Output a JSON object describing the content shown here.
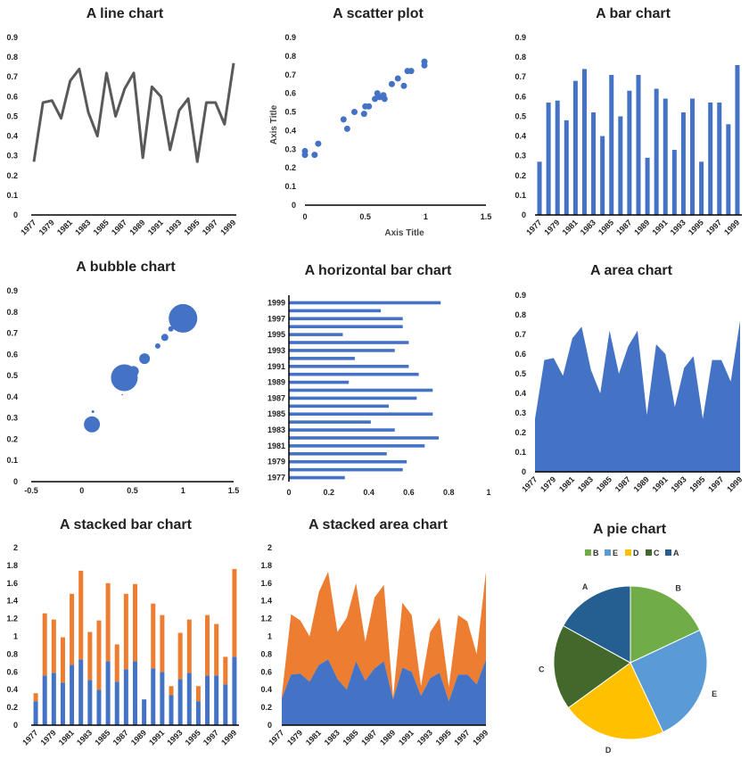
{
  "colors": {
    "blue": "#4472C4",
    "orange": "#ED7D31",
    "gray": "#595959",
    "pie_B": "#70AD47",
    "pie_E": "#5B9BD5",
    "pie_D": "#FFC000",
    "pie_C": "#43682B",
    "pie_A": "#255E91"
  },
  "chart_data": [
    {
      "id": "line",
      "type": "line",
      "title": "A line chart",
      "x": [
        "1977",
        "1978",
        "1979",
        "1980",
        "1981",
        "1982",
        "1983",
        "1984",
        "1985",
        "1986",
        "1987",
        "1988",
        "1989",
        "1990",
        "1991",
        "1992",
        "1993",
        "1994",
        "1995",
        "1996",
        "1997",
        "1998",
        "1999"
      ],
      "xticks": [
        "1977",
        "1979",
        "1981",
        "1983",
        "1985",
        "1987",
        "1989",
        "1991",
        "1993",
        "1995",
        "1997",
        "1999"
      ],
      "values": [
        0.27,
        0.57,
        0.58,
        0.49,
        0.68,
        0.74,
        0.52,
        0.4,
        0.72,
        0.5,
        0.64,
        0.72,
        0.29,
        0.65,
        0.6,
        0.33,
        0.53,
        0.59,
        0.27,
        0.57,
        0.57,
        0.46,
        0.77
      ],
      "ylim": [
        0,
        0.9
      ],
      "yticks": [
        "0",
        "0.1",
        "0.2",
        "0.3",
        "0.4",
        "0.5",
        "0.6",
        "0.7",
        "0.8",
        "0.9"
      ]
    },
    {
      "id": "scatter",
      "type": "scatter",
      "title": "A scatter plot",
      "xlabel": "Axis Title",
      "ylabel": "Axis Title",
      "xlim": [
        0,
        1.5
      ],
      "ylim": [
        0,
        0.9
      ],
      "xticks": [
        "0",
        "0.5",
        "1",
        "1.5"
      ],
      "yticks": [
        "0",
        "0.1",
        "0.2",
        "0.3",
        "0.4",
        "0.5",
        "0.6",
        "0.7",
        "0.8",
        "0.9"
      ],
      "points": [
        {
          "x": 0.0,
          "y": 0.27
        },
        {
          "x": 0.0,
          "y": 0.29
        },
        {
          "x": 0.08,
          "y": 0.27
        },
        {
          "x": 0.11,
          "y": 0.33
        },
        {
          "x": 0.32,
          "y": 0.46
        },
        {
          "x": 0.35,
          "y": 0.41
        },
        {
          "x": 0.41,
          "y": 0.5
        },
        {
          "x": 0.49,
          "y": 0.49
        },
        {
          "x": 0.5,
          "y": 0.53
        },
        {
          "x": 0.53,
          "y": 0.53
        },
        {
          "x": 0.58,
          "y": 0.57
        },
        {
          "x": 0.6,
          "y": 0.6
        },
        {
          "x": 0.62,
          "y": 0.58
        },
        {
          "x": 0.65,
          "y": 0.59
        },
        {
          "x": 0.66,
          "y": 0.57
        },
        {
          "x": 0.72,
          "y": 0.65
        },
        {
          "x": 0.77,
          "y": 0.68
        },
        {
          "x": 0.82,
          "y": 0.64
        },
        {
          "x": 0.85,
          "y": 0.72
        },
        {
          "x": 0.88,
          "y": 0.72
        },
        {
          "x": 0.99,
          "y": 0.75
        },
        {
          "x": 0.99,
          "y": 0.77
        }
      ]
    },
    {
      "id": "bar",
      "type": "bar",
      "title": "A bar chart",
      "x": [
        "1977",
        "1978",
        "1979",
        "1980",
        "1981",
        "1982",
        "1983",
        "1984",
        "1985",
        "1986",
        "1987",
        "1988",
        "1989",
        "1990",
        "1991",
        "1992",
        "1993",
        "1994",
        "1995",
        "1996",
        "1997",
        "1998",
        "1999"
      ],
      "xticks": [
        "1977",
        "1979",
        "1981",
        "1983",
        "1985",
        "1987",
        "1989",
        "1991",
        "1993",
        "1995",
        "1997",
        "1999"
      ],
      "values": [
        0.27,
        0.57,
        0.58,
        0.48,
        0.68,
        0.74,
        0.52,
        0.4,
        0.71,
        0.5,
        0.63,
        0.71,
        0.29,
        0.64,
        0.59,
        0.33,
        0.52,
        0.59,
        0.27,
        0.57,
        0.57,
        0.46,
        0.76
      ],
      "ylim": [
        0,
        0.9
      ],
      "yticks": [
        "0",
        "0.1",
        "0.2",
        "0.3",
        "0.4",
        "0.5",
        "0.6",
        "0.7",
        "0.8",
        "0.9"
      ]
    },
    {
      "id": "bubble",
      "type": "scatter",
      "title": "A bubble chart",
      "xlim": [
        -0.5,
        1.5
      ],
      "ylim": [
        0,
        0.9
      ],
      "xticks": [
        "-0.5",
        "0",
        "0.5",
        "1",
        "1.5"
      ],
      "yticks": [
        "0",
        "0.1",
        "0.2",
        "0.3",
        "0.4",
        "0.5",
        "0.6",
        "0.7",
        "0.8",
        "0.9"
      ],
      "points": [
        {
          "x": 0.1,
          "y": 0.27,
          "size": 9
        },
        {
          "x": 0.11,
          "y": 0.33,
          "size": 1.5
        },
        {
          "x": 0.42,
          "y": 0.49,
          "size": 15
        },
        {
          "x": 0.51,
          "y": 0.52,
          "size": 6
        },
        {
          "x": 0.4,
          "y": 0.41,
          "size": 0.8
        },
        {
          "x": 0.62,
          "y": 0.58,
          "size": 6
        },
        {
          "x": 0.65,
          "y": 0.57,
          "size": 1
        },
        {
          "x": 0.75,
          "y": 0.64,
          "size": 3
        },
        {
          "x": 0.82,
          "y": 0.68,
          "size": 4
        },
        {
          "x": 0.88,
          "y": 0.72,
          "size": 3
        },
        {
          "x": 1.0,
          "y": 0.77,
          "size": 16
        }
      ]
    },
    {
      "id": "hbar",
      "type": "bar",
      "orientation": "horizontal",
      "title": "A horizontal bar chart",
      "x": [
        "1977",
        "1978",
        "1979",
        "1980",
        "1981",
        "1982",
        "1983",
        "1984",
        "1985",
        "1986",
        "1987",
        "1988",
        "1989",
        "1990",
        "1991",
        "1992",
        "1993",
        "1994",
        "1995",
        "1996",
        "1997",
        "1998",
        "1999"
      ],
      "yticks": [
        "1977",
        "1979",
        "1981",
        "1983",
        "1985",
        "1987",
        "1989",
        "1991",
        "1993",
        "1995",
        "1997",
        "1999"
      ],
      "values": [
        0.28,
        0.57,
        0.59,
        0.49,
        0.68,
        0.75,
        0.53,
        0.41,
        0.72,
        0.5,
        0.64,
        0.72,
        0.3,
        0.65,
        0.6,
        0.33,
        0.53,
        0.6,
        0.27,
        0.57,
        0.57,
        0.46,
        0.76
      ],
      "xlim": [
        0,
        1
      ],
      "xticks": [
        "0",
        "0.2",
        "0.4",
        "0.6",
        "0.8",
        "1"
      ]
    },
    {
      "id": "area",
      "type": "area",
      "title": "A area chart",
      "x": [
        "1977",
        "1978",
        "1979",
        "1980",
        "1981",
        "1982",
        "1983",
        "1984",
        "1985",
        "1986",
        "1987",
        "1988",
        "1989",
        "1990",
        "1991",
        "1992",
        "1993",
        "1994",
        "1995",
        "1996",
        "1997",
        "1998",
        "1999"
      ],
      "xticks": [
        "1977",
        "1979",
        "1981",
        "1983",
        "1985",
        "1987",
        "1989",
        "1991",
        "1993",
        "1995",
        "1997",
        "1999"
      ],
      "values": [
        0.27,
        0.57,
        0.58,
        0.49,
        0.68,
        0.74,
        0.52,
        0.4,
        0.72,
        0.5,
        0.64,
        0.72,
        0.29,
        0.65,
        0.6,
        0.33,
        0.53,
        0.59,
        0.27,
        0.57,
        0.57,
        0.46,
        0.77
      ],
      "ylim": [
        0,
        0.9
      ],
      "yticks": [
        "0",
        "0.1",
        "0.2",
        "0.3",
        "0.4",
        "0.5",
        "0.6",
        "0.7",
        "0.8",
        "0.9"
      ]
    },
    {
      "id": "stackbar",
      "type": "bar",
      "stacked": true,
      "title": "A stacked bar chart",
      "x": [
        "1977",
        "1978",
        "1979",
        "1980",
        "1981",
        "1982",
        "1983",
        "1984",
        "1985",
        "1986",
        "1987",
        "1988",
        "1989",
        "1990",
        "1991",
        "1992",
        "1993",
        "1994",
        "1995",
        "1996",
        "1997",
        "1998",
        "1999"
      ],
      "xticks": [
        "1977",
        "1979",
        "1981",
        "1983",
        "1985",
        "1987",
        "1989",
        "1991",
        "1993",
        "1995",
        "1997",
        "1999"
      ],
      "series": [
        {
          "values": [
            0.27,
            0.56,
            0.59,
            0.48,
            0.68,
            0.74,
            0.51,
            0.4,
            0.72,
            0.49,
            0.63,
            0.72,
            0.29,
            0.64,
            0.6,
            0.34,
            0.52,
            0.59,
            0.27,
            0.56,
            0.56,
            0.46,
            0.77
          ]
        },
        {
          "values": [
            0.09,
            0.7,
            0.6,
            0.51,
            0.8,
            1.0,
            0.54,
            0.78,
            0.88,
            0.42,
            0.85,
            0.87,
            0.0,
            0.73,
            0.64,
            0.1,
            0.52,
            0.6,
            0.17,
            0.68,
            0.58,
            0.31,
            0.99
          ]
        }
      ],
      "ylim": [
        0,
        2
      ],
      "yticks": [
        "0",
        "0.2",
        "0.4",
        "0.6",
        "0.8",
        "1",
        "1.2",
        "1.4",
        "1.6",
        "1.8",
        "2"
      ]
    },
    {
      "id": "stackarea",
      "type": "area",
      "stacked": true,
      "title": "A stacked area chart",
      "x": [
        "1977",
        "1978",
        "1979",
        "1980",
        "1981",
        "1982",
        "1983",
        "1984",
        "1985",
        "1986",
        "1987",
        "1988",
        "1989",
        "1990",
        "1991",
        "1992",
        "1993",
        "1994",
        "1995",
        "1996",
        "1997",
        "1998",
        "1999"
      ],
      "xticks": [
        "1977",
        "1979",
        "1981",
        "1983",
        "1985",
        "1987",
        "1989",
        "1991",
        "1993",
        "1995",
        "1997",
        "1999"
      ],
      "series": [
        {
          "values": [
            0.3,
            0.57,
            0.58,
            0.49,
            0.68,
            0.74,
            0.52,
            0.4,
            0.72,
            0.5,
            0.64,
            0.72,
            0.29,
            0.65,
            0.6,
            0.33,
            0.53,
            0.59,
            0.27,
            0.57,
            0.57,
            0.46,
            0.74
          ]
        },
        {
          "values": [
            0.03,
            0.68,
            0.6,
            0.51,
            0.82,
            0.99,
            0.53,
            0.81,
            0.88,
            0.44,
            0.8,
            0.86,
            0.02,
            0.73,
            0.64,
            0.11,
            0.52,
            0.62,
            0.16,
            0.67,
            0.6,
            0.34,
            0.99
          ]
        }
      ],
      "ylim": [
        0,
        2
      ],
      "yticks": [
        "0",
        "0.2",
        "0.4",
        "0.6",
        "0.8",
        "1",
        "1.2",
        "1.4",
        "1.6",
        "1.8",
        "2"
      ]
    },
    {
      "id": "pie",
      "type": "pie",
      "title": "A pie chart",
      "legend": [
        "B",
        "E",
        "D",
        "C",
        "A"
      ],
      "legend_position": "top",
      "slices": [
        {
          "label": "B",
          "value": 0.18,
          "color": "#70AD47"
        },
        {
          "label": "E",
          "value": 0.25,
          "color": "#5B9BD5"
        },
        {
          "label": "D",
          "value": 0.22,
          "color": "#FFC000"
        },
        {
          "label": "C",
          "value": 0.18,
          "color": "#43682B"
        },
        {
          "label": "A",
          "value": 0.17,
          "color": "#255E91"
        }
      ]
    }
  ]
}
